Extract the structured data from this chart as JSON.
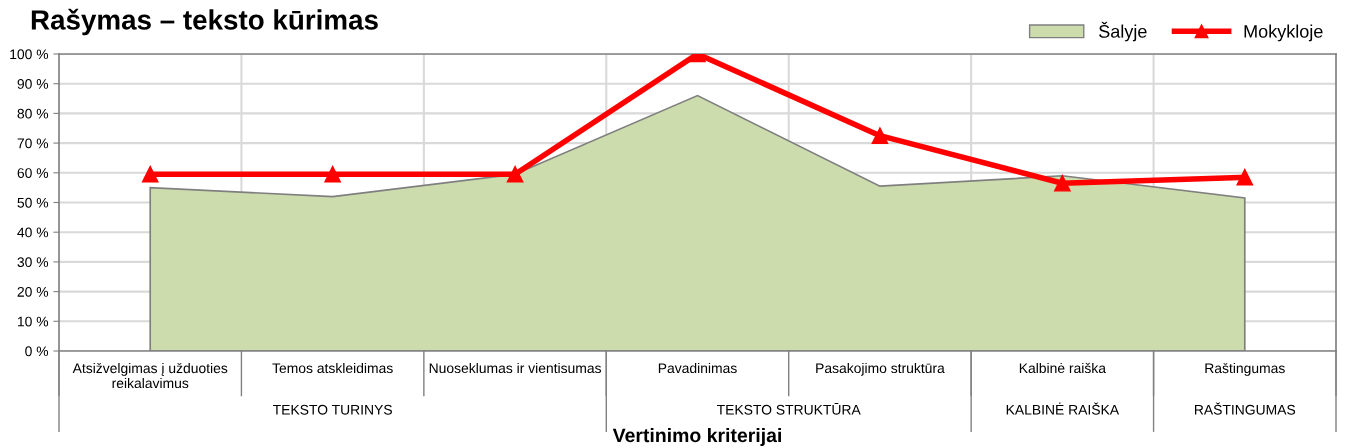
{
  "chart_data": {
    "type": "area",
    "title": "Rašymas – teksto kūrimas",
    "xlabel": "Vertinimo kriterijai",
    "categories": [
      "Atsižvelgimas į užduoties\nreikalavimus",
      "Temos atskleidimas",
      "Nuoseklumas ir vientisumas",
      "Pavadinimas",
      "Pasakojimo struktūra",
      "Kalbinė raiška",
      "Raštingumas"
    ],
    "series": [
      {
        "name": "Šalyje",
        "color": "#cddcac",
        "values": [
          55,
          52,
          59.5,
          86,
          55.5,
          59,
          51.5
        ]
      },
      {
        "name": "Mokykloje",
        "type": "line",
        "marker": "triangle",
        "color": "#ff0000",
        "values": [
          59.5,
          59.5,
          59.5,
          100,
          72.5,
          56.5,
          58.5
        ]
      }
    ],
    "annotations": [
      "TEKSTO TURINYS",
      "TEKSTO STRUKTŪRA",
      "KALBINĖ RAIŠKA",
      "RAŠTINGUMAS"
    ],
    "ylim": [
      0,
      100
    ],
    "yticks": [
      {
        "value": 0,
        "label": "0 %"
      },
      {
        "value": 10,
        "label": "10 %"
      },
      {
        "value": 20,
        "label": "20 %"
      },
      {
        "value": 30,
        "label": "30 %"
      },
      {
        "value": 40,
        "label": "40 %"
      },
      {
        "value": 50,
        "label": "50 %"
      },
      {
        "value": 60,
        "label": "60 %"
      },
      {
        "value": 70,
        "label": "70 %"
      },
      {
        "value": 80,
        "label": "80 %"
      },
      {
        "value": 90,
        "label": "90 %"
      },
      {
        "value": 100,
        "label": "100 %"
      }
    ],
    "grid": true,
    "legend": "top right",
    "line_style": "solid"
  }
}
